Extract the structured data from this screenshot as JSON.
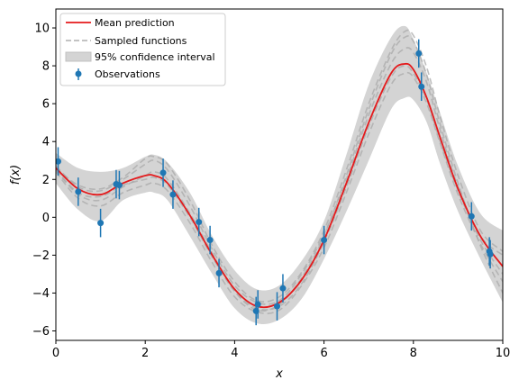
{
  "chart_data": {
    "type": "line",
    "xlabel": "x",
    "ylabel": "f(x)",
    "xlim": [
      0,
      10
    ],
    "ylim": [
      -6.5,
      11
    ],
    "xticks": [
      0,
      2,
      4,
      6,
      8,
      10
    ],
    "yticks": [
      -6,
      -4,
      -2,
      0,
      2,
      4,
      6,
      8,
      10
    ],
    "xtick_labels": [
      "0",
      "2",
      "4",
      "6",
      "8",
      "10"
    ],
    "ytick_labels": [
      "−6",
      "−4",
      "−2",
      "0",
      "2",
      "4",
      "6",
      "8",
      "10"
    ],
    "grid": false,
    "legend_position": "top-left",
    "colors": {
      "mean": "#e41a1c",
      "sampled": "#aaaaaa",
      "band": "#d4d4d4",
      "observations": "#1f77b4"
    },
    "legend": {
      "mean": "Mean prediction",
      "sampled": "Sampled functions",
      "band": "95% confidence interval",
      "observations": "Observations"
    },
    "mean_prediction": {
      "x": [
        0,
        0.5,
        1,
        1.5,
        2,
        2.2,
        2.5,
        3,
        3.5,
        4,
        4.5,
        5,
        5.5,
        6,
        6.5,
        7,
        7.5,
        7.8,
        8,
        8.3,
        8.6,
        9,
        9.5,
        10
      ],
      "y": [
        2.6,
        1.5,
        1.2,
        1.8,
        2.2,
        2.2,
        1.8,
        0.1,
        -2.0,
        -3.8,
        -4.7,
        -4.5,
        -3.3,
        -1.2,
        1.8,
        5.0,
        7.6,
        8.1,
        7.8,
        6.3,
        4.2,
        1.5,
        -1.0,
        -2.6
      ]
    },
    "confidence_interval": {
      "x": [
        0,
        0.5,
        1,
        1.5,
        2,
        2.2,
        2.5,
        3,
        3.5,
        4,
        4.5,
        5,
        5.5,
        6,
        6.5,
        7,
        7.5,
        7.8,
        8,
        8.3,
        8.6,
        9,
        9.5,
        10
      ],
      "lower": [
        1.8,
        0.4,
        -0.2,
        0.9,
        1.3,
        1.3,
        0.9,
        -1.0,
        -3.0,
        -4.8,
        -5.6,
        -5.4,
        -4.3,
        -2.2,
        0.3,
        3.0,
        5.7,
        6.3,
        6.2,
        5.0,
        2.8,
        0.3,
        -2.2,
        -4.5
      ],
      "upper": [
        3.4,
        2.6,
        2.4,
        2.6,
        3.2,
        3.3,
        2.9,
        1.3,
        -1.0,
        -2.8,
        -3.8,
        -3.6,
        -2.3,
        -0.2,
        3.3,
        7.0,
        9.5,
        10.1,
        9.4,
        7.6,
        5.5,
        2.7,
        0.2,
        -0.7
      ]
    },
    "sampled_functions": [
      {
        "x": [
          0,
          0.5,
          1,
          1.5,
          2,
          2.2,
          2.5,
          3,
          3.5,
          4,
          4.5,
          5,
          5.5,
          6,
          6.5,
          7,
          7.5,
          7.8,
          8,
          8.3,
          8.6,
          9,
          9.5,
          10
        ],
        "y": [
          2.5,
          1.2,
          0.9,
          1.6,
          2.2,
          2.4,
          2.0,
          0.2,
          -1.9,
          -3.9,
          -4.9,
          -4.6,
          -3.2,
          -1.0,
          2.2,
          5.7,
          8.6,
          9.5,
          9.3,
          7.5,
          4.9,
          1.8,
          -1.5,
          -4.0
        ]
      },
      {
        "x": [
          0,
          0.5,
          1,
          1.5,
          2,
          2.2,
          2.5,
          3,
          3.5,
          4,
          4.5,
          5,
          5.5,
          6,
          6.5,
          7,
          7.5,
          7.8,
          8,
          8.3,
          8.6,
          9,
          9.5,
          10
        ],
        "y": [
          2.7,
          1.6,
          1.4,
          2.0,
          2.8,
          3.0,
          2.5,
          0.6,
          -1.7,
          -3.6,
          -4.5,
          -4.4,
          -3.0,
          -0.9,
          2.0,
          5.4,
          8.1,
          8.9,
          8.7,
          7.1,
          4.6,
          1.6,
          -1.0,
          -2.0
        ]
      },
      {
        "x": [
          0,
          0.5,
          1,
          1.5,
          2,
          2.2,
          2.5,
          3,
          3.5,
          4,
          4.5,
          5,
          5.5,
          6,
          6.5,
          7,
          7.5,
          7.8,
          8,
          8.3,
          8.6,
          9,
          9.5,
          10
        ],
        "y": [
          2.4,
          1.0,
          0.6,
          1.3,
          1.7,
          1.8,
          1.4,
          -0.3,
          -2.4,
          -4.2,
          -5.0,
          -4.9,
          -3.6,
          -1.6,
          1.3,
          4.4,
          7.0,
          7.6,
          7.4,
          6.0,
          3.9,
          1.2,
          -1.4,
          -3.4
        ]
      },
      {
        "x": [
          0,
          0.5,
          1,
          1.5,
          2,
          2.2,
          2.5,
          3,
          3.5,
          4,
          4.5,
          5,
          5.5,
          6,
          6.5,
          7,
          7.5,
          7.8,
          8,
          8.3,
          8.6,
          9,
          9.5,
          10
        ],
        "y": [
          2.6,
          1.7,
          1.5,
          2.1,
          3.1,
          3.2,
          2.8,
          0.9,
          -1.5,
          -3.4,
          -4.4,
          -4.2,
          -2.9,
          -0.7,
          2.5,
          6.0,
          8.8,
          9.8,
          9.6,
          7.9,
          5.3,
          2.2,
          -0.7,
          -1.8
        ]
      },
      {
        "x": [
          0,
          0.5,
          1,
          1.5,
          2,
          2.2,
          2.5,
          3,
          3.5,
          4,
          4.5,
          5,
          5.5,
          6,
          6.5,
          7,
          7.5,
          7.8,
          8,
          8.3,
          8.6,
          9,
          9.5,
          10
        ],
        "y": [
          2.5,
          1.3,
          1.1,
          1.7,
          2.0,
          2.1,
          1.7,
          0.0,
          -2.1,
          -3.9,
          -4.8,
          -4.7,
          -3.5,
          -1.3,
          1.6,
          4.8,
          7.4,
          8.0,
          7.6,
          6.2,
          4.0,
          1.4,
          -1.2,
          -3.0
        ]
      }
    ],
    "observations": {
      "x": [
        0.05,
        0.5,
        1.0,
        1.35,
        1.42,
        2.4,
        2.62,
        3.2,
        3.45,
        3.65,
        4.48,
        4.52,
        4.95,
        5.08,
        6.0,
        8.12,
        8.18,
        9.3,
        9.7,
        9.72
      ],
      "y": [
        2.95,
        1.35,
        -0.3,
        1.75,
        1.7,
        2.35,
        1.2,
        -0.25,
        -1.2,
        -2.95,
        -4.95,
        -4.6,
        -4.7,
        -3.75,
        -1.2,
        8.65,
        6.9,
        0.05,
        -1.8,
        -1.95
      ],
      "error": [
        0.75,
        0.75,
        0.75,
        0.75,
        0.75,
        0.75,
        0.75,
        0.75,
        0.75,
        0.75,
        0.75,
        0.75,
        0.75,
        0.75,
        0.75,
        0.75,
        0.75,
        0.75,
        0.75,
        0.75
      ]
    }
  }
}
